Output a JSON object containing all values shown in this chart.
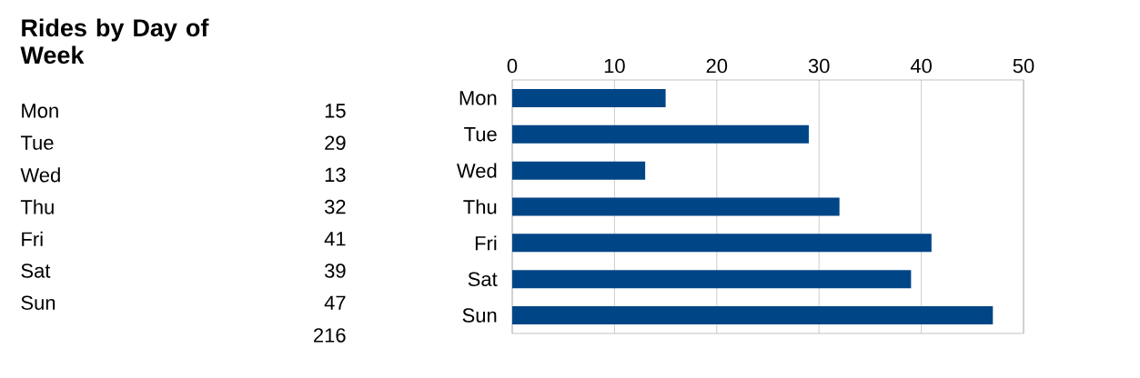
{
  "chart_data": {
    "type": "bar",
    "orientation": "horizontal",
    "title": "Rides by Day of Week",
    "categories": [
      "Mon",
      "Tue",
      "Wed",
      "Thu",
      "Fri",
      "Sat",
      "Sun"
    ],
    "values": [
      15,
      29,
      13,
      32,
      41,
      39,
      47
    ],
    "color": "#004586",
    "xlim": [
      0,
      50
    ],
    "xticks": [
      0,
      10,
      20,
      30,
      40,
      50
    ],
    "grid": "x",
    "data_labels": true,
    "annotations": [
      "216"
    ]
  }
}
